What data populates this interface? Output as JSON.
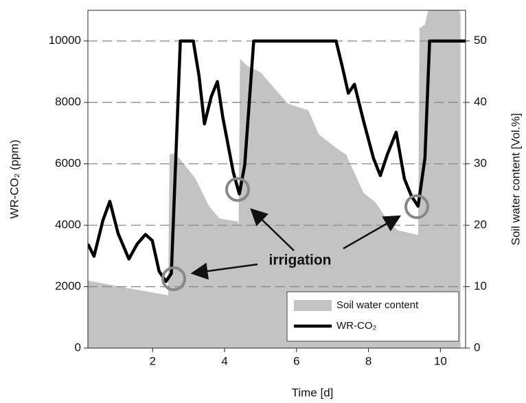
{
  "chart_data": {
    "type": "line_area",
    "xlabel": "Time [d]",
    "ylabel": "WR-CO₂ (ppm)",
    "y2label": "Soil water content [Vol.%]",
    "xlim": [
      0.2,
      10.7
    ],
    "xticks": [
      2,
      4,
      6,
      8,
      10
    ],
    "ylim": [
      0,
      11000
    ],
    "yticks": [
      0,
      2000,
      4000,
      6000,
      8000,
      10000
    ],
    "y2lim": [
      0,
      55
    ],
    "y2ticks": [
      0,
      10,
      20,
      30,
      40,
      50
    ],
    "grid": true,
    "legend": "lower right",
    "annotation": "irrigation",
    "series": [
      {
        "name": "Soil water content",
        "kind": "area",
        "axis": "y2",
        "color": "#c3c3c3",
        "x": [
          0.2,
          1.19,
          2.43,
          2.47,
          2.62,
          2.81,
          3.19,
          3.57,
          3.86,
          4.37,
          4.39,
          4.43,
          4.62,
          5.0,
          5.76,
          6.33,
          6.62,
          7.1,
          7.38,
          7.86,
          8.2,
          8.52,
          8.81,
          9.38,
          9.42,
          9.57,
          9.7,
          10.43,
          10.56
        ],
        "values": [
          11.0,
          9.9,
          8.6,
          31.5,
          31.8,
          30.4,
          27.6,
          23.1,
          21.1,
          20.6,
          19.8,
          47.1,
          46.0,
          44.9,
          39.8,
          38.7,
          34.8,
          32.6,
          31.5,
          25.3,
          23.7,
          20.9,
          19.2,
          18.4,
          52.1,
          52.7,
          56,
          56,
          54.4
        ]
      },
      {
        "name": "WR-CO₂",
        "kind": "line",
        "color": "#000000",
        "x": [
          0.2,
          0.37,
          0.62,
          0.81,
          1.04,
          1.34,
          1.57,
          1.8,
          1.99,
          2.18,
          2.37,
          2.52,
          2.77,
          3.13,
          3.29,
          3.44,
          3.63,
          3.8,
          3.95,
          4.24,
          4.41,
          4.56,
          4.81,
          7.1,
          7.29,
          7.44,
          7.61,
          7.86,
          8.14,
          8.33,
          8.52,
          8.77,
          9.0,
          9.19,
          9.38,
          9.57,
          9.7,
          10.69
        ],
        "values": [
          3390,
          2990,
          4170,
          4780,
          3730,
          2900,
          3390,
          3700,
          3500,
          2500,
          2170,
          2430,
          10000,
          10000,
          8860,
          7300,
          8190,
          8680,
          7520,
          5740,
          5020,
          5960,
          10000,
          10000,
          9080,
          8300,
          8590,
          7410,
          6180,
          5620,
          6290,
          7030,
          5510,
          4960,
          4620,
          6180,
          10000,
          10000
        ]
      }
    ]
  }
}
